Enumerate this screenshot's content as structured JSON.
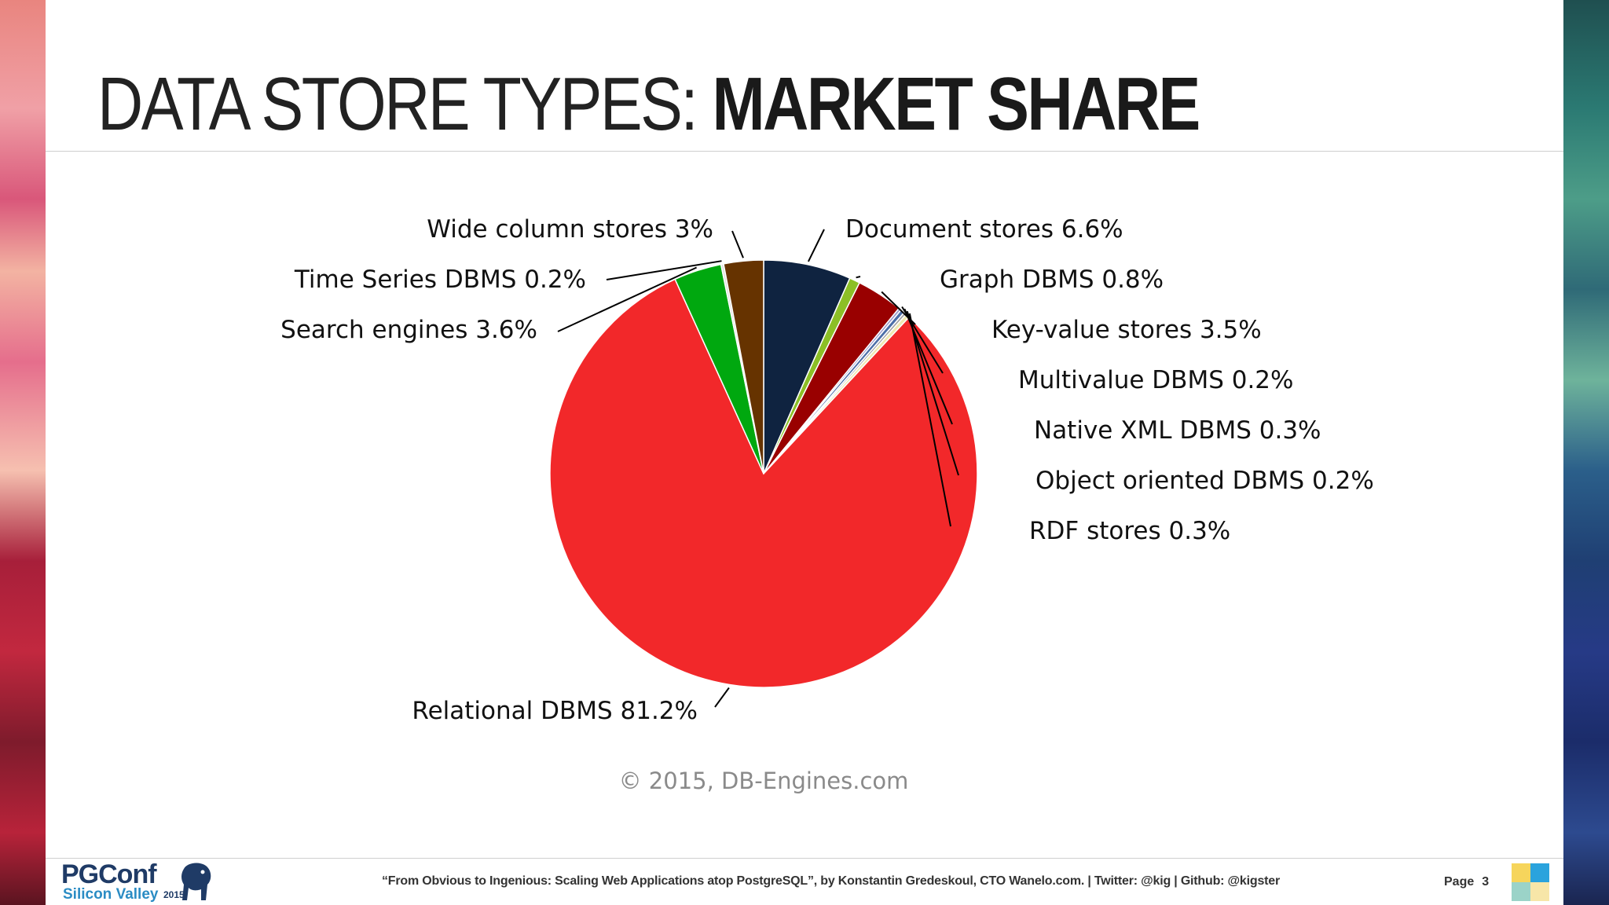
{
  "slide": {
    "title_light": "DATA STORE TYPES:",
    "title_bold": "MARKET SHARE"
  },
  "chart_data": {
    "type": "pie",
    "title": "",
    "source": "© 2015, DB-Engines.com",
    "start_angle_deg": 0,
    "direction": "clockwise",
    "slices": [
      {
        "label": "Document stores 6.6%",
        "name": "Document stores",
        "value": 6.6,
        "color": "#0f2340"
      },
      {
        "label": "Graph DBMS 0.8%",
        "name": "Graph DBMS",
        "value": 0.8,
        "color": "#8cbf26"
      },
      {
        "label": "Key-value stores 3.5%",
        "name": "Key-value stores",
        "value": 3.5,
        "color": "#990000"
      },
      {
        "label": "Multivalue DBMS 0.2%",
        "name": "Multivalue DBMS",
        "value": 0.2,
        "color": "#9a9acb"
      },
      {
        "label": "Native XML DBMS 0.3%",
        "name": "Native XML DBMS",
        "value": 0.3,
        "color": "#4c6ea8"
      },
      {
        "label": "Object oriented DBMS 0.2%",
        "name": "Object oriented DBMS",
        "value": 0.2,
        "color": "#a0a0a0"
      },
      {
        "label": "RDF stores 0.3%",
        "name": "RDF stores",
        "value": 0.3,
        "color": "#efe9b2"
      },
      {
        "label": "Relational DBMS 81.2%",
        "name": "Relational DBMS",
        "value": 81.2,
        "color": "#f2282a"
      },
      {
        "label": "Search engines 3.6%",
        "name": "Search engines",
        "value": 3.6,
        "color": "#00a80f"
      },
      {
        "label": "Time Series DBMS 0.2%",
        "name": "Time Series DBMS",
        "value": 0.2,
        "color": "#e0e0e0"
      },
      {
        "label": "Wide column stores 3%",
        "name": "Wide column stores",
        "value": 3.0,
        "color": "#663300"
      }
    ]
  },
  "footer": {
    "logo_main": "PGConf",
    "logo_sub": "Silicon Valley",
    "logo_year": "2015",
    "credit": "“From Obvious to Ingenious: Scaling Web Applications atop PostgreSQL”, by Konstantin Gredeskoul, CTO Wanelo.com. | Twitter: @kig | Github: @kigster",
    "page_label": "Page",
    "page_number": "3"
  }
}
